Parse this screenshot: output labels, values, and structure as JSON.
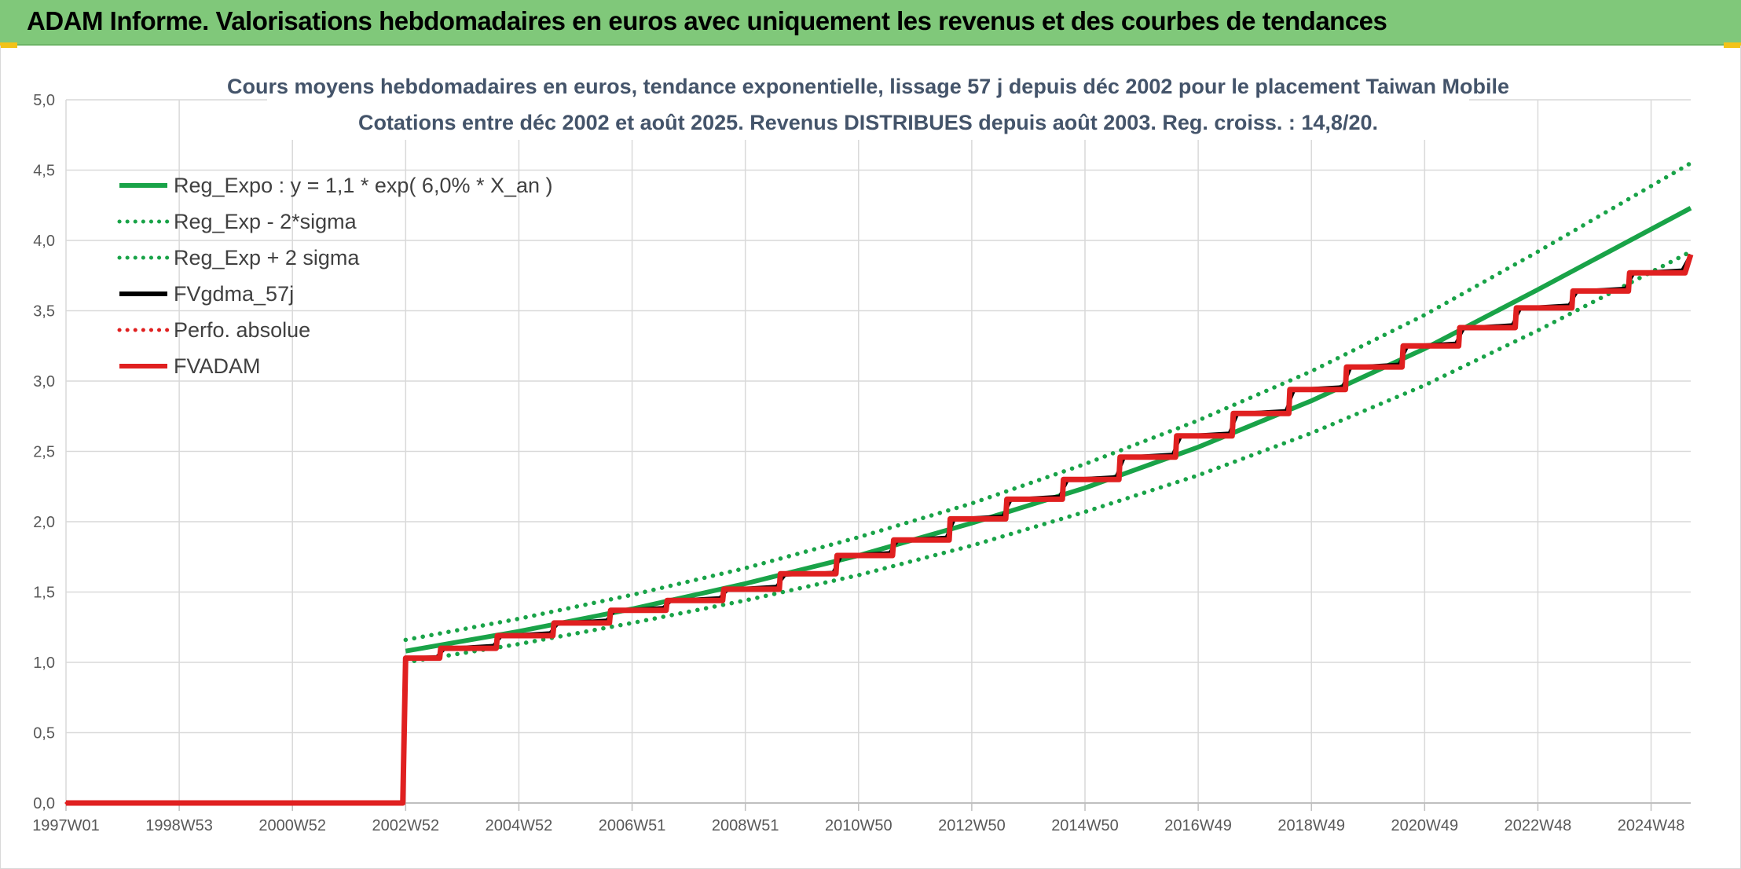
{
  "banner": {
    "title": "ADAM Informe. Valorisations hebdomadaires en euros avec uniquement les revenus et des courbes de tendances",
    "background": "#80c87a"
  },
  "chart_data": {
    "type": "line",
    "title": "Cours moyens hebdomadaires en euros, tendance exponentielle, lissage 57 j depuis déc 2002 pour le placement Taiwan Mobile",
    "subtitle": "Cotations entre déc 2002 et août 2025. Revenus DISTRIBUES depuis août 2003. Reg. croiss. : 14,8/20.",
    "xlabel": "",
    "ylabel": "",
    "x_range": [
      1997.0,
      2025.7
    ],
    "x_ticks": [
      {
        "x": 1997.0,
        "label": "1997W01"
      },
      {
        "x": 1999.0,
        "label": "1998W53"
      },
      {
        "x": 2001.0,
        "label": "2000W52"
      },
      {
        "x": 2003.0,
        "label": "2002W52"
      },
      {
        "x": 2005.0,
        "label": "2004W52"
      },
      {
        "x": 2007.0,
        "label": "2006W51"
      },
      {
        "x": 2009.0,
        "label": "2008W51"
      },
      {
        "x": 2011.0,
        "label": "2010W50"
      },
      {
        "x": 2013.0,
        "label": "2012W50"
      },
      {
        "x": 2015.0,
        "label": "2014W50"
      },
      {
        "x": 2017.0,
        "label": "2016W49"
      },
      {
        "x": 2019.0,
        "label": "2018W49"
      },
      {
        "x": 2021.0,
        "label": "2020W49"
      },
      {
        "x": 2023.0,
        "label": "2022W48"
      },
      {
        "x": 2025.0,
        "label": "2024W48"
      }
    ],
    "ylim": [
      0,
      5
    ],
    "y_ticks": [
      "0,0",
      "0,5",
      "1,0",
      "1,5",
      "2,0",
      "2,5",
      "3,0",
      "3,5",
      "4,0",
      "4,5",
      "5,0"
    ],
    "grid": true,
    "legend_position": "top-left",
    "series": [
      {
        "name": "Reg_Expo : y = 1,1 * exp( 6,0% *  X_an )",
        "color": "#19a348",
        "style": "solid",
        "x": [
          2003.0,
          2005.0,
          2007.0,
          2009.0,
          2011.0,
          2013.0,
          2015.0,
          2017.0,
          2019.0,
          2021.0,
          2023.0,
          2025.7
        ],
        "y": [
          1.08,
          1.22,
          1.38,
          1.56,
          1.76,
          1.99,
          2.24,
          2.53,
          2.86,
          3.23,
          3.65,
          4.23
        ]
      },
      {
        "name": "Reg_Exp - 2*sigma",
        "color": "#19a348",
        "style": "dotted",
        "x": [
          2003.0,
          2005.0,
          2007.0,
          2009.0,
          2011.0,
          2013.0,
          2015.0,
          2017.0,
          2019.0,
          2021.0,
          2023.0,
          2025.7
        ],
        "y": [
          1.0,
          1.13,
          1.28,
          1.44,
          1.62,
          1.83,
          2.07,
          2.33,
          2.63,
          2.97,
          3.36,
          3.92
        ]
      },
      {
        "name": "Reg_Exp + 2 sigma",
        "color": "#19a348",
        "style": "dotted",
        "x": [
          2003.0,
          2005.0,
          2007.0,
          2009.0,
          2011.0,
          2013.0,
          2015.0,
          2017.0,
          2019.0,
          2021.0,
          2023.0,
          2025.7
        ],
        "y": [
          1.16,
          1.31,
          1.48,
          1.67,
          1.89,
          2.13,
          2.41,
          2.72,
          3.07,
          3.47,
          3.92,
          4.55
        ]
      },
      {
        "name": "FVgdma_57j",
        "color": "#000000",
        "style": "solid",
        "x": [
          1997.0,
          2002.95,
          2003.0,
          2003.55,
          2003.7,
          2004.55,
          2004.7,
          2005.55,
          2005.7,
          2006.55,
          2006.7,
          2007.55,
          2007.7,
          2008.55,
          2008.7,
          2009.55,
          2009.7,
          2010.55,
          2010.7,
          2011.55,
          2011.7,
          2012.55,
          2012.7,
          2013.55,
          2013.7,
          2014.55,
          2014.7,
          2015.55,
          2015.7,
          2016.55,
          2016.7,
          2017.55,
          2017.7,
          2018.55,
          2018.7,
          2019.55,
          2019.7,
          2020.55,
          2020.7,
          2021.55,
          2021.7,
          2022.55,
          2022.7,
          2023.55,
          2023.7,
          2024.55,
          2024.7,
          2025.55,
          2025.7
        ],
        "y": [
          0.0,
          0.0,
          1.03,
          1.04,
          1.1,
          1.12,
          1.19,
          1.21,
          1.28,
          1.3,
          1.37,
          1.39,
          1.44,
          1.46,
          1.52,
          1.54,
          1.62,
          1.64,
          1.76,
          1.78,
          1.87,
          1.89,
          2.02,
          2.04,
          2.16,
          2.18,
          2.3,
          2.32,
          2.46,
          2.48,
          2.61,
          2.63,
          2.77,
          2.79,
          2.94,
          2.96,
          3.1,
          3.12,
          3.25,
          3.27,
          3.38,
          3.4,
          3.52,
          3.54,
          3.64,
          3.66,
          3.77,
          3.79,
          3.9
        ]
      },
      {
        "name": "Perfo. absolue",
        "color": "#e02020",
        "style": "dotted",
        "x": [
          1997.0,
          2002.95,
          2003.0,
          2003.6,
          2003.62,
          2004.6,
          2004.62,
          2005.6,
          2005.62,
          2006.6,
          2006.62,
          2007.6,
          2007.62,
          2008.6,
          2008.62,
          2009.6,
          2009.62,
          2010.6,
          2010.62,
          2011.6,
          2011.62,
          2012.6,
          2012.62,
          2013.6,
          2013.62,
          2014.6,
          2014.62,
          2015.6,
          2015.62,
          2016.6,
          2016.62,
          2017.6,
          2017.62,
          2018.6,
          2018.62,
          2019.6,
          2019.62,
          2020.6,
          2020.62,
          2021.6,
          2021.62,
          2022.6,
          2022.62,
          2023.6,
          2023.62,
          2024.6,
          2024.62,
          2025.6,
          2025.7
        ],
        "y": [
          0.0,
          0.0,
          1.03,
          1.03,
          1.1,
          1.1,
          1.19,
          1.19,
          1.28,
          1.28,
          1.37,
          1.37,
          1.44,
          1.44,
          1.52,
          1.52,
          1.63,
          1.63,
          1.76,
          1.76,
          1.87,
          1.87,
          2.02,
          2.02,
          2.16,
          2.16,
          2.3,
          2.3,
          2.46,
          2.46,
          2.61,
          2.61,
          2.77,
          2.77,
          2.94,
          2.94,
          3.1,
          3.1,
          3.25,
          3.25,
          3.38,
          3.38,
          3.52,
          3.52,
          3.64,
          3.64,
          3.77,
          3.77,
          3.87
        ]
      },
      {
        "name": "FVADAM",
        "color": "#e02020",
        "style": "solid",
        "x": [
          1997.0,
          2002.95,
          2003.0,
          2003.6,
          2003.62,
          2004.6,
          2004.62,
          2005.6,
          2005.62,
          2006.6,
          2006.62,
          2007.6,
          2007.62,
          2008.6,
          2008.62,
          2009.6,
          2009.62,
          2010.6,
          2010.62,
          2011.6,
          2011.62,
          2012.6,
          2012.62,
          2013.6,
          2013.62,
          2014.6,
          2014.62,
          2015.6,
          2015.62,
          2016.6,
          2016.62,
          2017.6,
          2017.62,
          2018.6,
          2018.62,
          2019.6,
          2019.62,
          2020.6,
          2020.62,
          2021.6,
          2021.62,
          2022.6,
          2022.62,
          2023.6,
          2023.62,
          2024.6,
          2024.62,
          2025.6,
          2025.7
        ],
        "y": [
          0.0,
          0.0,
          1.03,
          1.03,
          1.1,
          1.1,
          1.19,
          1.19,
          1.28,
          1.28,
          1.37,
          1.37,
          1.44,
          1.44,
          1.52,
          1.52,
          1.63,
          1.63,
          1.76,
          1.76,
          1.87,
          1.87,
          2.02,
          2.02,
          2.16,
          2.16,
          2.3,
          2.3,
          2.46,
          2.46,
          2.61,
          2.61,
          2.77,
          2.77,
          2.94,
          2.94,
          3.1,
          3.1,
          3.25,
          3.25,
          3.38,
          3.38,
          3.52,
          3.52,
          3.64,
          3.64,
          3.77,
          3.77,
          3.9
        ]
      }
    ]
  }
}
